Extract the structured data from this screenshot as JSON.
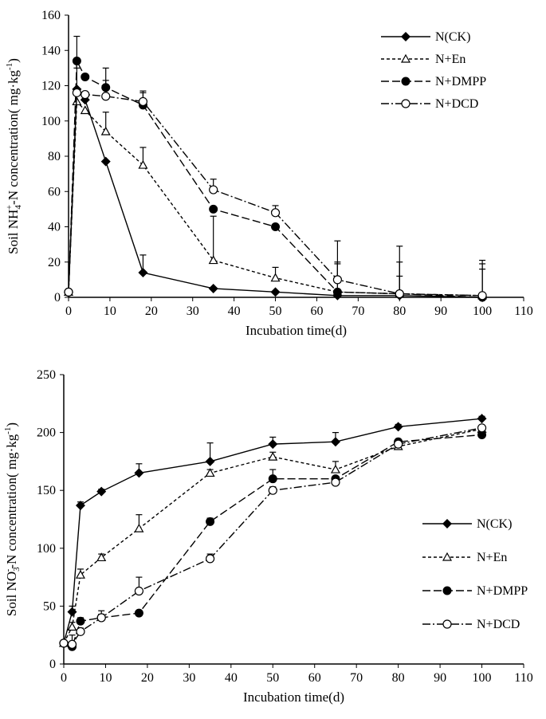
{
  "chart_data": [
    {
      "type": "line",
      "ylabel_parts": [
        "Soil NH",
        "4",
        "+",
        "-N concentration( mg·kg",
        "-1",
        ")"
      ],
      "xlabel": "Incubation time(d)",
      "xlim": [
        0,
        110
      ],
      "ylim": [
        0,
        160
      ],
      "xticks": [
        0,
        10,
        20,
        30,
        40,
        50,
        60,
        70,
        80,
        90,
        100,
        110
      ],
      "yticks": [
        0,
        20,
        40,
        60,
        80,
        100,
        120,
        140,
        160
      ],
      "grid": false,
      "legend": "top-right",
      "x": [
        0,
        2,
        4,
        9,
        18,
        35,
        50,
        65,
        80,
        100
      ],
      "series": [
        {
          "name": "N(CK)",
          "marker": "filled-diamond",
          "line": "solid",
          "values": [
            3,
            118,
            112,
            77,
            14,
            5,
            3,
            1,
            1,
            0
          ],
          "error": [
            0,
            0,
            0,
            0,
            10,
            0,
            0,
            0,
            0,
            0
          ]
        },
        {
          "name": "N+En",
          "marker": "open-triangle",
          "line": "short-dash",
          "values": [
            3,
            111,
            106,
            94,
            75,
            21,
            11,
            3,
            2,
            1
          ],
          "error": [
            0,
            0,
            0,
            11,
            10,
            25,
            6,
            29,
            27,
            20
          ]
        },
        {
          "name": "N+DMPP",
          "marker": "filled-circle",
          "line": "long-dash",
          "values": [
            3,
            134,
            125,
            119,
            109,
            50,
            40,
            3,
            2,
            0
          ],
          "error": [
            0,
            14,
            0,
            11,
            8,
            0,
            0,
            16,
            18,
            16
          ]
        },
        {
          "name": "N+DCD",
          "marker": "open-circle",
          "line": "dash-dot",
          "values": [
            3,
            116,
            115,
            114,
            111,
            61,
            48,
            10,
            2,
            1
          ],
          "error": [
            0,
            14,
            0,
            9,
            5,
            6,
            4,
            10,
            10,
            18
          ]
        }
      ]
    },
    {
      "type": "line",
      "ylabel_parts": [
        "Soil NO",
        "3",
        "-",
        "-N concentration( mg·kg",
        "-1",
        ")"
      ],
      "xlabel": "Incubation time(d)",
      "xlim": [
        0,
        110
      ],
      "ylim": [
        0,
        250
      ],
      "xticks": [
        0,
        10,
        20,
        30,
        40,
        50,
        60,
        70,
        80,
        90,
        100,
        110
      ],
      "yticks": [
        0,
        50,
        100,
        150,
        200,
        250
      ],
      "grid": false,
      "legend": "right",
      "x": [
        0,
        2,
        4,
        9,
        18,
        35,
        50,
        65,
        80,
        100
      ],
      "series": [
        {
          "name": "N(CK)",
          "marker": "filled-diamond",
          "line": "solid",
          "values": [
            18,
            45,
            137,
            149,
            165,
            175,
            190,
            192,
            205,
            212
          ],
          "error": [
            0,
            5,
            3,
            2,
            8,
            16,
            6,
            8,
            2,
            2
          ]
        },
        {
          "name": "N+En",
          "marker": "open-triangle",
          "line": "short-dash",
          "values": [
            18,
            32,
            77,
            92,
            117,
            165,
            179,
            168,
            188,
            203
          ],
          "error": [
            0,
            4,
            5,
            3,
            12,
            3,
            4,
            7,
            2,
            2
          ]
        },
        {
          "name": "N+DMPP",
          "marker": "filled-circle",
          "line": "long-dash",
          "values": [
            18,
            15,
            37,
            40,
            44,
            123,
            160,
            160,
            192,
            198
          ],
          "error": [
            0,
            3,
            3,
            3,
            2,
            3,
            8,
            2,
            2,
            2
          ]
        },
        {
          "name": "N+DCD",
          "marker": "open-circle",
          "line": "dash-dot",
          "values": [
            18,
            17,
            28,
            40,
            63,
            91,
            150,
            157,
            190,
            204
          ],
          "error": [
            0,
            8,
            3,
            6,
            12,
            4,
            3,
            2,
            2,
            2
          ]
        }
      ]
    }
  ]
}
